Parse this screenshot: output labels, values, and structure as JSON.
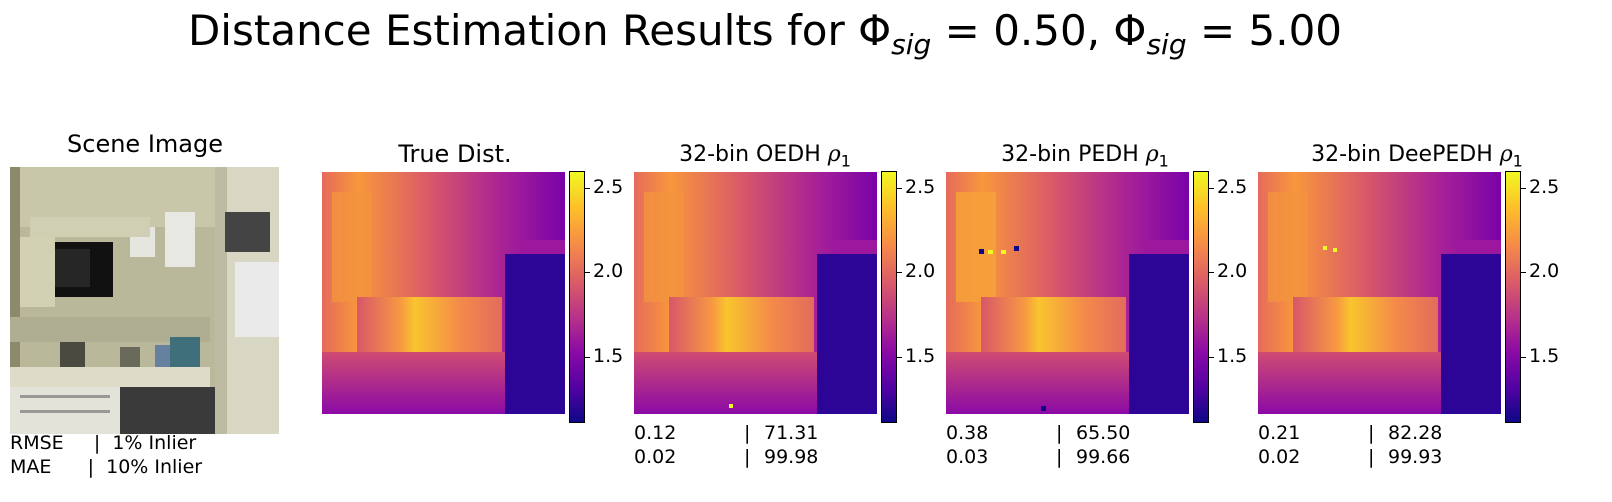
{
  "title": {
    "prefix": "Distance Estimation Results for ",
    "phi": "Φ",
    "sub1": "sig",
    "eq1": " =  0.50, ",
    "sub2": "sig",
    "eq2": " =  5.00"
  },
  "panels": [
    {
      "id": "scene",
      "title": "Scene Image"
    },
    {
      "id": "true",
      "title": "True Dist."
    },
    {
      "id": "oedh",
      "title_prefix": "32-bin OEDH ",
      "rho": "ρ",
      "rho_sub": "1"
    },
    {
      "id": "pedh",
      "title_prefix": "32-bin PEDH ",
      "rho": "ρ",
      "rho_sub": "1"
    },
    {
      "id": "deepedh",
      "title_prefix": "32-bin DeePEDH ",
      "rho": "ρ",
      "rho_sub": "1"
    }
  ],
  "colorbar": {
    "ticks": [
      "2.5",
      "2.0",
      "1.5"
    ],
    "tick_values": [
      2.5,
      2.0,
      1.5
    ],
    "range": [
      1.12,
      2.6
    ],
    "colormap": "plasma"
  },
  "legend": {
    "row1": "RMSE     |  1% Inlier",
    "row2": "MAE      |  10% Inlier"
  },
  "metrics": {
    "oedh": {
      "rmse": "0.12",
      "inlier1": "71.31",
      "mae": "0.02",
      "inlier10": "99.98"
    },
    "pedh": {
      "rmse": "0.38",
      "inlier1": "65.50",
      "mae": "0.03",
      "inlier10": "99.66"
    },
    "deepedh": {
      "rmse": "0.21",
      "inlier1": "82.28",
      "mae": "0.02",
      "inlier10": "99.93"
    }
  },
  "separator": "|"
}
